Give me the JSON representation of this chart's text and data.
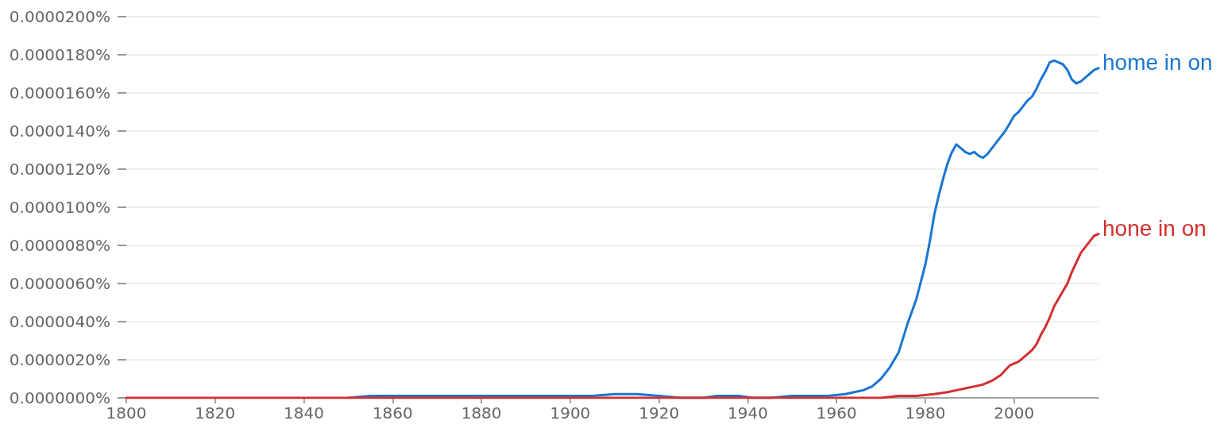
{
  "chart_data": {
    "type": "line",
    "xlim": [
      1800,
      2019
    ],
    "xticks": [
      1800,
      1820,
      1840,
      1860,
      1880,
      1900,
      1920,
      1940,
      1960,
      1980,
      2000
    ],
    "ylim": [
      0,
      2e-05
    ],
    "yticks": [
      {
        "value": 0,
        "label": "0.0000000%"
      },
      {
        "value": 2e-06,
        "label": "0.0000020%"
      },
      {
        "value": 4e-06,
        "label": "0.0000040%"
      },
      {
        "value": 6e-06,
        "label": "0.0000060%"
      },
      {
        "value": 8e-06,
        "label": "0.0000080%"
      },
      {
        "value": 1e-05,
        "label": "0.0000100%"
      },
      {
        "value": 1.2e-05,
        "label": "0.0000120%"
      },
      {
        "value": 1.4e-05,
        "label": "0.0000140%"
      },
      {
        "value": 1.6e-05,
        "label": "0.0000160%"
      },
      {
        "value": 1.8e-05,
        "label": "0.0000180%"
      },
      {
        "value": 2e-05,
        "label": "0.0000200%"
      }
    ],
    "grid": "y",
    "line_style": "solid",
    "series": [
      {
        "name": "home in on",
        "color": "#1976d2",
        "x": [
          1850,
          1855,
          1860,
          1865,
          1870,
          1875,
          1880,
          1885,
          1890,
          1895,
          1900,
          1905,
          1910,
          1915,
          1920,
          1925,
          1930,
          1933,
          1938,
          1941,
          1945,
          1950,
          1955,
          1958,
          1962,
          1964,
          1966,
          1968,
          1970,
          1972,
          1974,
          1976,
          1978,
          1980,
          1981,
          1982,
          1983,
          1984,
          1985,
          1986,
          1987,
          1988,
          1989,
          1990,
          1991,
          1992,
          1993,
          1994,
          1995,
          1996,
          1997,
          1998,
          1999,
          2000,
          2001,
          2002,
          2003,
          2004,
          2005,
          2006,
          2007,
          2008,
          2009,
          2010,
          2011,
          2012,
          2013,
          2014,
          2015,
          2016,
          2017,
          2018,
          2019
        ],
        "values": [
          0,
          1e-07,
          1e-07,
          1e-07,
          1e-07,
          1e-07,
          1e-07,
          1e-07,
          1e-07,
          1e-07,
          1e-07,
          1e-07,
          2e-07,
          2e-07,
          1e-07,
          0,
          0,
          1e-07,
          1e-07,
          0,
          0,
          1e-07,
          1e-07,
          1e-07,
          2e-07,
          3e-07,
          4e-07,
          6e-07,
          1e-06,
          1.6e-06,
          2.4e-06,
          3.9e-06,
          5.2e-06,
          7e-06,
          8.2e-06,
          9.6e-06,
          1.06e-05,
          1.15e-05,
          1.23e-05,
          1.29e-05,
          1.33e-05,
          1.31e-05,
          1.29e-05,
          1.28e-05,
          1.29e-05,
          1.27e-05,
          1.26e-05,
          1.28e-05,
          1.31e-05,
          1.34e-05,
          1.37e-05,
          1.4e-05,
          1.44e-05,
          1.48e-05,
          1.5e-05,
          1.53e-05,
          1.56e-05,
          1.58e-05,
          1.62e-05,
          1.67e-05,
          1.71e-05,
          1.76e-05,
          1.77e-05,
          1.76e-05,
          1.75e-05,
          1.72e-05,
          1.67e-05,
          1.65e-05,
          1.66e-05,
          1.68e-05,
          1.7e-05,
          1.72e-05,
          1.73e-05
        ]
      },
      {
        "name": "hone in on",
        "color": "#d32f2f",
        "x": [
          1800,
          1850,
          1900,
          1950,
          1966,
          1970,
          1974,
          1978,
          1982,
          1985,
          1987,
          1989,
          1991,
          1993,
          1995,
          1997,
          1999,
          2001,
          2003,
          2004,
          2005,
          2006,
          2007,
          2008,
          2009,
          2010,
          2011,
          2012,
          2013,
          2014,
          2015,
          2016,
          2017,
          2018,
          2019
        ],
        "values": [
          0,
          0,
          0,
          0,
          0,
          0,
          1e-07,
          1e-07,
          2e-07,
          3e-07,
          4e-07,
          5e-07,
          6e-07,
          7e-07,
          9e-07,
          1.2e-06,
          1.7e-06,
          1.9e-06,
          2.3e-06,
          2.5e-06,
          2.8e-06,
          3.3e-06,
          3.7e-06,
          4.2e-06,
          4.8e-06,
          5.2e-06,
          5.6e-06,
          6e-06,
          6.6e-06,
          7.1e-06,
          7.6e-06,
          7.9e-06,
          8.2e-06,
          8.5e-06,
          8.6e-06
        ]
      }
    ]
  }
}
